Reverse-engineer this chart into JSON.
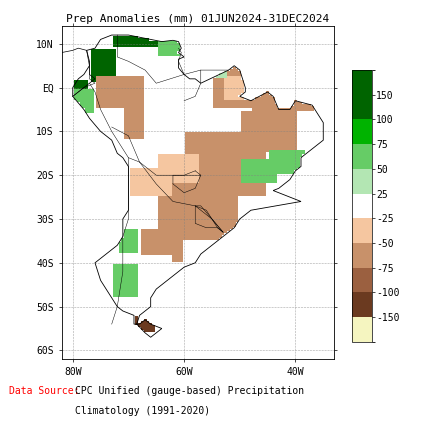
{
  "title": "Prep Anomalies (mm) 01JUN2024-31DEC2024",
  "cmap_colors": [
    "#f5f5c0",
    "#6b3a20",
    "#9b6040",
    "#c8916a",
    "#f5c6a0",
    "#ffffff",
    "#b3e6b3",
    "#66cc66",
    "#00b300",
    "#006400",
    "#006400"
  ],
  "cmap_bounds": [
    -200,
    -150,
    -100,
    -75,
    -50,
    -25,
    25,
    50,
    75,
    100,
    150,
    200
  ],
  "colorbar_ticks": [
    -150,
    -100,
    -75,
    -50,
    -25,
    25,
    50,
    75,
    100,
    150
  ],
  "colorbar_labels": [
    "-150",
    "-100",
    "-75",
    "-50",
    "-25",
    "25",
    "50",
    "75",
    "100",
    "150"
  ],
  "lon_ticks": [
    -80,
    -60,
    -40
  ],
  "lat_ticks": [
    10,
    0,
    -10,
    -20,
    -30,
    -40,
    -50,
    -60
  ],
  "lon_labels": [
    "80W",
    "60W",
    "40W"
  ],
  "lat_labels": [
    "10N",
    "EQ",
    "10S",
    "20S",
    "30S",
    "40S",
    "50S",
    "60S"
  ],
  "xlim": [
    -82,
    -33
  ],
  "ylim": [
    -62,
    14
  ],
  "background_color": "#ffffff",
  "tick_fontsize": 7,
  "title_fontsize": 8,
  "datasource_label": "Data Source:",
  "datasource_text": "  CPC Unified (gauge-based) Precipitation\n  Climatology (1991-2020)"
}
